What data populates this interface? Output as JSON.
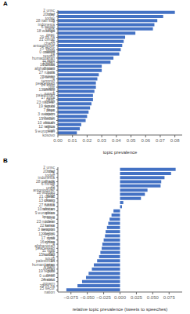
{
  "chart_data": [
    {
      "type": "bar",
      "orientation": "horizontal",
      "title": "A",
      "categories": [
        "2 unsc brief",
        "20 day today",
        "28 itali sdg",
        "5 indonesia thank",
        "6 minist unga",
        "18 women peac",
        "29 thi ha",
        "21 climat chang",
        "26 antonioguter unog",
        "25 secur nation",
        "0 council resolut",
        "14 humanitarian civilian",
        "11 right human",
        "16 china afghanistan",
        "8 parti polit",
        "27 russia russian",
        "22 terror terrorist",
        "4 peacekeep unit",
        "24 elect govern",
        "13 ukrain russia",
        "1 palestinian peac",
        "17 syria syrian",
        "23 nuclear korea",
        "19 republ peac",
        "7 libya intern",
        "3 weapon chemic",
        "15 sudan south",
        "10 african africa",
        "12 region mali",
        "9 european kosovo"
      ],
      "values": [
        0.08,
        0.072,
        0.068,
        0.066,
        0.065,
        0.053,
        0.046,
        0.045,
        0.044,
        0.043,
        0.042,
        0.038,
        0.036,
        0.03,
        0.03,
        0.028,
        0.027,
        0.026,
        0.026,
        0.025,
        0.024,
        0.024,
        0.023,
        0.022,
        0.021,
        0.02,
        0.019,
        0.016,
        0.015,
        0.013
      ],
      "color": "#4472C4",
      "xlabel": "topic prevalence",
      "xlim": [
        0,
        0.085
      ],
      "xticks": [
        {
          "value": 0,
          "label": "0.00"
        },
        0.01,
        0.02,
        0.03,
        0.04,
        0.05,
        0.06,
        0.07,
        0.08
      ]
    },
    {
      "type": "bar",
      "orientation": "horizontal",
      "title": "B",
      "categories": [
        "2 unsc brief",
        "20 day today",
        "5 indonesia thank",
        "28 itali sdg",
        "6 minist unga",
        "26 antonioguter unog",
        "18 women peac",
        "21 climat chang",
        "13 ukrain russia",
        "27 russia russian",
        "10 african africa",
        "9 european kosovo",
        "7 libya intern",
        "23 nuclear korea",
        "22 terror terrorist",
        "3 weapon chemic",
        "12 region mali",
        "17 syria syrian",
        "16 china afghanistan",
        "4 peacekeep unit",
        "11 right human",
        "15 sudan south",
        "1 palestinian peac",
        "14 humanitarian civilian",
        "8 parti polit",
        "19 republ peac",
        "0 council resolut",
        "24 elect govern",
        "29 thi ha",
        "25 secur nation"
      ],
      "values": [
        0.085,
        0.078,
        0.068,
        0.063,
        0.062,
        0.042,
        0.038,
        0.032,
        0.005,
        0.003,
        -0.01,
        -0.013,
        -0.016,
        -0.018,
        -0.02,
        -0.022,
        -0.023,
        -0.025,
        -0.027,
        -0.028,
        -0.03,
        -0.032,
        -0.035,
        -0.04,
        -0.043,
        -0.048,
        -0.052,
        -0.058,
        -0.065,
        -0.082
      ],
      "color": "#4472C4",
      "xlabel": "relative topic prevalence (tweets to speeches)",
      "xlim": [
        -0.095,
        0.095
      ],
      "xticks": [
        {
          "value": -0.075,
          "label": "−0.075"
        },
        {
          "value": -0.05,
          "label": "−0.050"
        },
        {
          "value": -0.025,
          "label": "−0.025"
        },
        {
          "value": 0,
          "label": "0.000"
        },
        0.025,
        {
          "value": 0.05,
          "label": "0.050"
        },
        0.075
      ]
    }
  ]
}
